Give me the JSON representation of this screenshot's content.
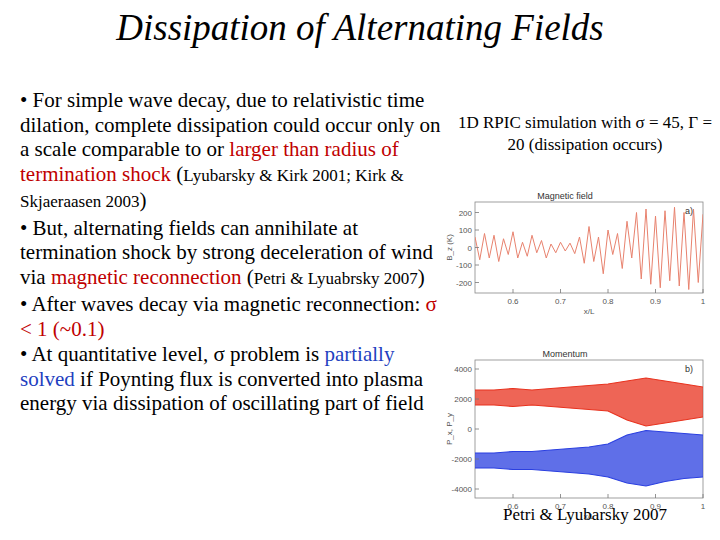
{
  "slide": {
    "title": "Dissipation of Alternating Fields",
    "bullets": [
      [
        {
          "text": "• For simple wave decay, due to relativistic time dilation, complete dissipation could occur only on a scale comparable to or "
        },
        {
          "text": "larger than radius of termination shock",
          "color": "#c00000"
        },
        {
          "text": " ("
        },
        {
          "text": "Lyubarsky & Kirk 2001; Kirk & Skjaeraasen 2003",
          "cite": true
        },
        {
          "text": ")"
        }
      ],
      [
        {
          "text": "• But, alternating fields can annihilate at termination shock by strong deceleration of wind via "
        },
        {
          "text": "magnetic reconnection",
          "color": "#c00000"
        },
        {
          "text": " ("
        },
        {
          "text": "Petri & Lyuabrsky 2007",
          "cite": true
        },
        {
          "text": ")"
        }
      ],
      [
        {
          "text": "• After waves decay via magnetic reconnection:  "
        },
        {
          "text": "σ < 1 (~0.1)",
          "color": "#c00000"
        }
      ],
      [
        {
          "text": "• At quantitative level, σ problem is "
        },
        {
          "text": "partially solved",
          "color": "#1f3fbf"
        },
        {
          "text": " if Poynting flux is converted into plasma energy via dissipation of oscillating part of field"
        }
      ]
    ],
    "caption": "1D RPIC simulation with σ = 45, Γ = 20 (dissipation occurs)",
    "credit": "Petri & Lyubarsky 2007"
  },
  "chart_data": [
    {
      "type": "line",
      "title": "Magnetic field",
      "annotation": "a)",
      "x_label": "x/L",
      "y_label": "B_z (K)",
      "color": "#e8826e",
      "x": [
        0.52,
        0.53,
        0.54,
        0.55,
        0.56,
        0.57,
        0.58,
        0.59,
        0.6,
        0.61,
        0.62,
        0.63,
        0.64,
        0.65,
        0.66,
        0.67,
        0.68,
        0.69,
        0.7,
        0.71,
        0.72,
        0.73,
        0.74,
        0.75,
        0.76,
        0.77,
        0.78,
        0.79,
        0.8,
        0.81,
        0.82,
        0.83,
        0.84,
        0.85,
        0.86,
        0.87,
        0.88,
        0.89,
        0.9,
        0.91,
        0.92,
        0.93,
        0.94,
        0.95,
        0.96,
        0.97,
        0.98,
        0.99,
        1.0
      ],
      "values": [
        60,
        -70,
        80,
        -60,
        70,
        -80,
        50,
        -40,
        90,
        -60,
        30,
        -50,
        70,
        -30,
        40,
        -60,
        20,
        -30,
        30,
        -20,
        25,
        -35,
        60,
        -90,
        120,
        -80,
        60,
        -150,
        100,
        -40,
        80,
        -120,
        150,
        -60,
        200,
        -180,
        220,
        -210,
        180,
        -230,
        210,
        -190,
        230,
        -220,
        200,
        -240,
        220,
        -200,
        190
      ],
      "xlim": [
        0.52,
        1.0
      ],
      "ylim": [
        -260,
        260
      ],
      "xticks": [
        0.6,
        0.7,
        0.8,
        0.9,
        1
      ],
      "yticks": [
        200,
        100,
        0,
        -100,
        -200
      ]
    },
    {
      "type": "area",
      "title": "Momentum",
      "annotation": "b)",
      "x_label": "x/L",
      "y_label": "P_x, P_y",
      "x": [
        0.52,
        0.56,
        0.6,
        0.64,
        0.68,
        0.72,
        0.76,
        0.8,
        0.84,
        0.88,
        0.92,
        0.96,
        1.0
      ],
      "series": [
        {
          "color": "#e8321e",
          "upper": [
            2600,
            2600,
            2700,
            2600,
            2700,
            2800,
            2900,
            3000,
            3200,
            3400,
            3200,
            3000,
            2800
          ],
          "lower": [
            1600,
            1600,
            1500,
            1600,
            1500,
            1400,
            1300,
            1200,
            600,
            200,
            400,
            600,
            800
          ]
        },
        {
          "color": "#2a3fe0",
          "upper": [
            -1600,
            -1600,
            -1500,
            -1500,
            -1400,
            -1300,
            -1200,
            -1000,
            -400,
            -100,
            -200,
            -300,
            -400
          ],
          "lower": [
            -2600,
            -2600,
            -2700,
            -2700,
            -2800,
            -2900,
            -3000,
            -3200,
            -3600,
            -3800,
            -3500,
            -3300,
            -3200
          ]
        }
      ],
      "xlim": [
        0.52,
        1.0
      ],
      "ylim": [
        -4600,
        4600
      ],
      "xticks": [
        0.6,
        0.7,
        0.8,
        0.9,
        1
      ],
      "yticks": [
        4000,
        2000,
        0,
        -2000,
        -4000
      ]
    }
  ]
}
